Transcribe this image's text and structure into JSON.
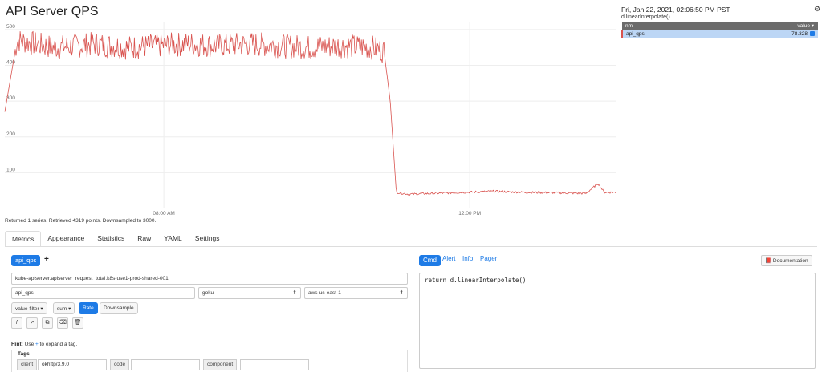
{
  "header": {
    "title": "API Server QPS"
  },
  "legend": {
    "timestamp": "Fri, Jan 22, 2021, 02:06:50 PM PST",
    "function": "d.linearInterpolate()",
    "col_name": "nm",
    "col_value": "value ▾",
    "row_name": "api_qps",
    "row_value": "78.328",
    "series_color": "#d9534f",
    "settings_icon": "gear-icon"
  },
  "chart_data": {
    "type": "line",
    "series": [
      {
        "name": "api_qps"
      }
    ],
    "x_ticks": [
      "08:00 AM",
      "12:00 PM"
    ],
    "y_ticks": [
      100,
      200,
      300,
      400,
      500
    ],
    "ylim": [
      0,
      520
    ],
    "x": [
      0,
      2,
      5,
      8,
      12,
      15,
      20,
      25,
      30,
      35,
      40,
      45,
      50,
      55,
      60,
      62,
      63,
      64,
      66,
      70,
      75,
      80,
      85,
      90,
      95,
      97,
      98,
      100
    ],
    "values": [
      270,
      470,
      460,
      450,
      455,
      460,
      450,
      455,
      460,
      455,
      460,
      455,
      450,
      455,
      450,
      440,
      300,
      45,
      40,
      42,
      45,
      48,
      45,
      44,
      42,
      70,
      45,
      45
    ],
    "grid": true,
    "legend_position": "top-right"
  },
  "stats": "Returned 1 series. Retrieved 4319 points. Downsampled to 3000.",
  "tabs": [
    "Metrics",
    "Appearance",
    "Statistics",
    "Raw",
    "YAML",
    "Settings"
  ],
  "query": {
    "name": "api_qps",
    "add": "+",
    "metric": "kube-apiserver.apiserver_request_total.k8s-use1-prod-shared-001",
    "alias": "api_qps",
    "namespace": "goku",
    "region": "aws-us-east-1",
    "value_filter": "value filter ▾",
    "aggregator": "sum ▾",
    "rate": "Rate",
    "downsample": "Downsample",
    "tool_icons": {
      "f": "𝑓",
      "rocket": "➚",
      "copy": "⧉",
      "eraser": "⌫",
      "trash": "🗑"
    }
  },
  "hint": {
    "label": "Hint:",
    "pre": "Use",
    "plus": "+",
    "post": "to expand a tag."
  },
  "tags": {
    "title": "Tags",
    "items": [
      {
        "key": "client",
        "value": "okhttp/3.9.0"
      },
      {
        "key": "code",
        "value": ""
      },
      {
        "key": "component",
        "value": ""
      }
    ]
  },
  "right_panel": {
    "tabs": [
      "Cmd",
      "Alert",
      "Info",
      "Pager"
    ],
    "doc_button": "📕 Documentation",
    "code": "return d.linearInterpolate()"
  }
}
